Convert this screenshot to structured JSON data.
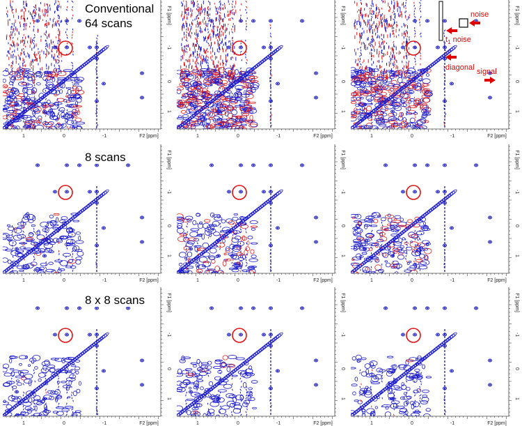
{
  "figure": {
    "rows": [
      {
        "label_lines": [
          "Conventional",
          "64 scans"
        ],
        "panels": [
          {
            "x_axis_label": "F2 [ppm]",
            "y_axis_label": "F1 [ppm]",
            "x_ticks": [
              "1",
              "0",
              "-1"
            ],
            "y_ticks": [
              "-1",
              "0",
              "1"
            ]
          },
          {
            "x_axis_label": "F2 [ppm]",
            "y_axis_label": "F1 [ppm]",
            "x_ticks": [
              "1",
              "0",
              "-1"
            ],
            "y_ticks": [
              "-1",
              "0",
              "1"
            ]
          },
          {
            "x_axis_label": "F2 [ppm]",
            "y_axis_label": "F1 [ppm]",
            "x_ticks": [
              "1",
              "0",
              "-1"
            ],
            "y_ticks": [
              "-1",
              "0",
              "1"
            ]
          }
        ]
      },
      {
        "label_lines": [
          "8 scans"
        ],
        "panels": [
          {
            "x_axis_label": "F2 [ppm]",
            "y_axis_label": "F1 [ppm]",
            "x_ticks": [
              "1",
              "0",
              "-1"
            ],
            "y_ticks": [
              "-1",
              "0",
              "1"
            ]
          },
          {
            "x_axis_label": "F2 [ppm]",
            "y_axis_label": "F1 [ppm]",
            "x_ticks": [
              "1",
              "0",
              "-1"
            ],
            "y_ticks": [
              "-1",
              "0",
              "1"
            ]
          },
          {
            "x_axis_label": "F2 [ppm]",
            "y_axis_label": "F1 [ppm]",
            "x_ticks": [
              "1",
              "0",
              "-1"
            ],
            "y_ticks": [
              "-1",
              "0",
              "1"
            ]
          }
        ]
      },
      {
        "label_lines": [
          "8 x 8 scans"
        ],
        "panels": [
          {
            "x_axis_label": "F2 [ppm]",
            "y_axis_label": "F1 [ppm]",
            "x_ticks": [
              "1",
              "0",
              "-1"
            ],
            "y_ticks": [
              "-1",
              "0",
              "1"
            ]
          },
          {
            "x_axis_label": "F2 [ppm]",
            "y_axis_label": "F1 [ppm]",
            "x_ticks": [
              "1",
              "0",
              "-1"
            ],
            "y_ticks": [
              "-1",
              "0",
              "1"
            ]
          },
          {
            "x_axis_label": "F2 [ppm]",
            "y_axis_label": "F1 [ppm]",
            "x_ticks": [
              "1",
              "0",
              "-1"
            ],
            "y_ticks": [
              "-1",
              "0",
              "1"
            ]
          }
        ]
      }
    ],
    "annotations": {
      "noise": "noise",
      "t1_noise": {
        "base": "t",
        "subscript": "1",
        "rest": " noise"
      },
      "diagonal": "diagonal",
      "signal": "signal"
    }
  }
}
